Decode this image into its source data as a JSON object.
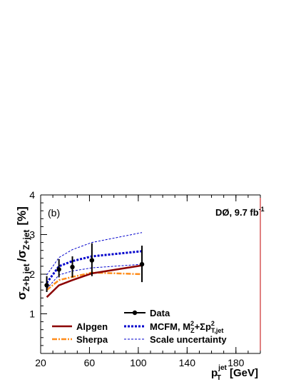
{
  "chart_data": {
    "type": "line",
    "panel_label": "(b)",
    "experiment_label": "DØ, 9.7 fb",
    "experiment_label_sup": "-1",
    "ylabel": {
      "base1": "σ",
      "sub1": "Z+b jet",
      "slash": "/",
      "base2": "σ",
      "sub2": "Z+jet",
      "unit": "[%]"
    },
    "xlabel": {
      "base": "p",
      "sup": "jet",
      "sub": "T",
      "unit": "[GeV]"
    },
    "xlim": [
      20,
      200
    ],
    "ylim": [
      0,
      4
    ],
    "xticks": [
      20,
      60,
      100,
      140,
      180
    ],
    "yticks": [
      1,
      2,
      3,
      4
    ],
    "x_minor_step": 10,
    "y_minor_step": 0.2,
    "colors": {
      "data": "#000000",
      "alpgen": "#8b0000",
      "sherpa": "#ff8c1a",
      "mcfm": "#0000cc",
      "frame_right": "#c00000"
    },
    "series": {
      "data": {
        "name": "Data",
        "points": [
          {
            "x": 25,
            "y": 1.72,
            "lo": 1.55,
            "hi": 1.95
          },
          {
            "x": 35,
            "y": 2.12,
            "lo": 1.92,
            "hi": 2.38
          },
          {
            "x": 46,
            "y": 2.18,
            "lo": 1.92,
            "hi": 2.45
          },
          {
            "x": 62,
            "y": 2.35,
            "lo": 1.95,
            "hi": 2.78
          },
          {
            "x": 103,
            "y": 2.25,
            "lo": 1.8,
            "hi": 2.72
          }
        ]
      },
      "alpgen": {
        "name": "Alpgen",
        "x": [
          25,
          35,
          46,
          62,
          103
        ],
        "y": [
          1.42,
          1.72,
          1.85,
          2.02,
          2.22
        ]
      },
      "sherpa": {
        "name": "Sherpa",
        "x": [
          25,
          35,
          46,
          62,
          103
        ],
        "y": [
          1.6,
          1.85,
          1.93,
          2.04,
          2.0
        ]
      },
      "mcfm": {
        "name_prefix": "MCFM, M",
        "name_mid": "+Σp",
        "sup": "2",
        "sub_z": "Z",
        "sub_tjet": "T,jet",
        "x": [
          25,
          35,
          46,
          62,
          103
        ],
        "y": [
          1.78,
          2.2,
          2.33,
          2.45,
          2.58
        ]
      },
      "scale_up": {
        "name": "Scale uncertainty",
        "x": [
          25,
          35,
          46,
          62,
          103
        ],
        "y": [
          1.98,
          2.42,
          2.62,
          2.8,
          3.05
        ]
      },
      "scale_down": {
        "x": [
          25,
          35,
          46,
          62,
          103
        ],
        "y": [
          1.63,
          1.98,
          2.08,
          2.16,
          2.25
        ]
      }
    }
  }
}
